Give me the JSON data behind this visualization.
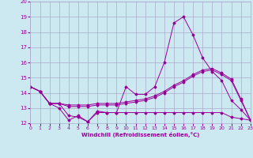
{
  "x": [
    0,
    1,
    2,
    3,
    4,
    5,
    6,
    7,
    8,
    9,
    10,
    11,
    12,
    13,
    14,
    15,
    16,
    17,
    18,
    19,
    20,
    21,
    22,
    23
  ],
  "line1": [
    14.4,
    14.1,
    13.3,
    13.0,
    12.2,
    12.5,
    12.1,
    12.8,
    12.7,
    12.7,
    14.4,
    13.9,
    13.9,
    14.4,
    16.0,
    18.6,
    19.0,
    17.8,
    16.3,
    15.4,
    14.8,
    13.5,
    12.9,
    12.2
  ],
  "line2": [
    14.4,
    14.1,
    13.3,
    13.3,
    13.1,
    13.1,
    13.1,
    13.2,
    13.2,
    13.2,
    13.3,
    13.4,
    13.5,
    13.7,
    14.0,
    14.4,
    14.7,
    15.1,
    15.4,
    15.5,
    15.2,
    14.8,
    13.5,
    12.2
  ],
  "line3": [
    14.4,
    14.1,
    13.3,
    13.3,
    13.2,
    13.2,
    13.2,
    13.3,
    13.3,
    13.3,
    13.4,
    13.5,
    13.6,
    13.8,
    14.1,
    14.5,
    14.8,
    15.2,
    15.5,
    15.6,
    15.3,
    14.9,
    13.6,
    12.2
  ],
  "line4": [
    14.4,
    14.1,
    13.3,
    13.3,
    12.5,
    12.4,
    12.1,
    12.7,
    12.7,
    12.7,
    12.7,
    12.7,
    12.7,
    12.7,
    12.7,
    12.7,
    12.7,
    12.7,
    12.7,
    12.7,
    12.7,
    12.4,
    12.3,
    12.2
  ],
  "color": "#990099",
  "bg_color": "#cce8f0",
  "grid_color": "#aaaacc",
  "xlabel": "Windchill (Refroidissement éolien,°C)",
  "ylim": [
    12,
    20
  ],
  "xlim": [
    0,
    23
  ],
  "yticks": [
    12,
    13,
    14,
    15,
    16,
    17,
    18,
    19,
    20
  ],
  "xticks": [
    0,
    1,
    2,
    3,
    4,
    5,
    6,
    7,
    8,
    9,
    10,
    11,
    12,
    13,
    14,
    15,
    16,
    17,
    18,
    19,
    20,
    21,
    22,
    23
  ]
}
